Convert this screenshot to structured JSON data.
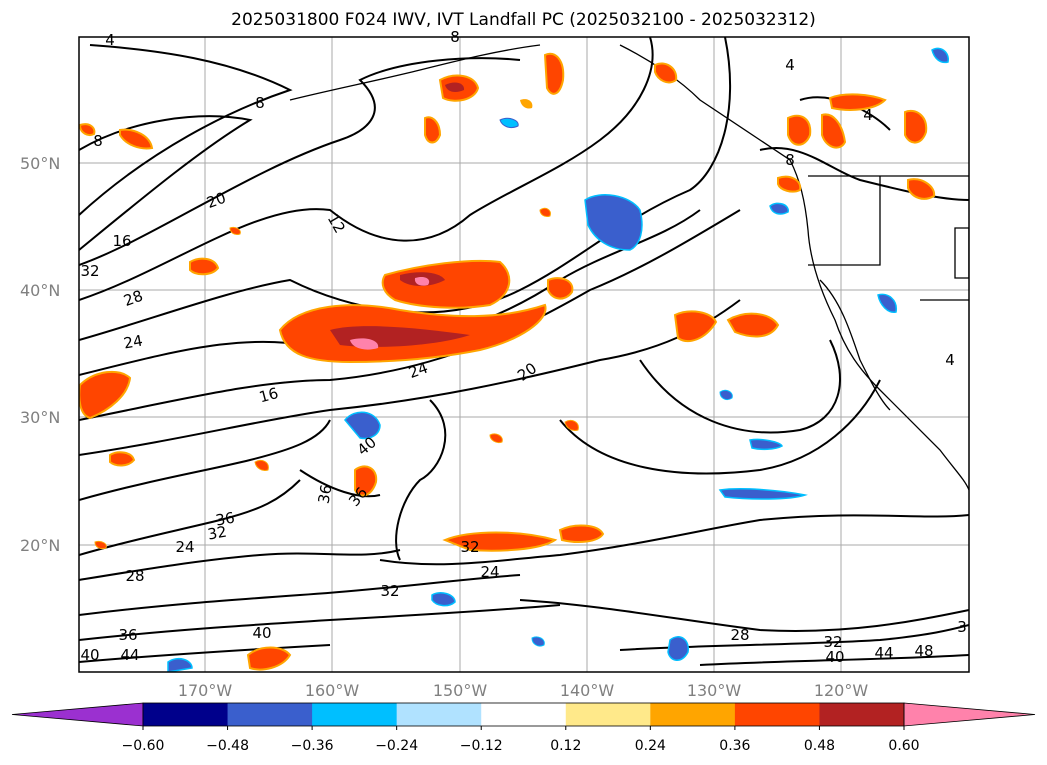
{
  "title": "2025031800 F024 IWV, IVT Landfall PC (2025032100 - 2025032312)",
  "map": {
    "lat_labels": [
      "50°N",
      "40°N",
      "30°N",
      "20°N"
    ],
    "lon_labels": [
      "170°W",
      "160°W",
      "150°W",
      "140°W",
      "130°W",
      "120°W"
    ],
    "contour_labels": [
      "4",
      "8",
      "8",
      "8",
      "4",
      "4",
      "8",
      "20",
      "16",
      "12",
      "32",
      "28",
      "24",
      "24",
      "16",
      "20",
      "40",
      "36",
      "36",
      "36",
      "32",
      "24",
      "28",
      "32",
      "24",
      "32",
      "40",
      "36",
      "40",
      "44",
      "28",
      "32",
      "40",
      "44",
      "48",
      "3",
      "4"
    ]
  },
  "colorbar": {
    "ticks": [
      "−0.60",
      "−0.48",
      "−0.36",
      "−0.24",
      "−0.12",
      "0.12",
      "0.24",
      "0.36",
      "0.48",
      "0.60"
    ],
    "colors": [
      "#9b30d0",
      "#00008b",
      "#3a5fcd",
      "#00bfff",
      "#b0e2ff",
      "#ffffff",
      "#ffe98a",
      "#ffa500",
      "#ff4500",
      "#b22222",
      "#ff82ab"
    ]
  }
}
